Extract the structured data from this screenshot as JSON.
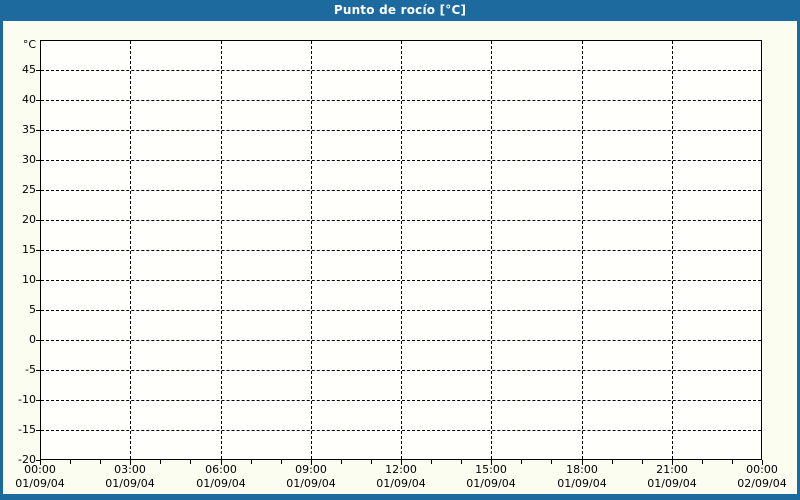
{
  "window": {
    "title": "Punto de rocío [°C]"
  },
  "colors": {
    "titlebar_bg": "#1d6a9e",
    "window_border": "#1d6a9e",
    "window_bg": "#fcfdf1",
    "plot_bg": "#fffffb",
    "grid": "#000000",
    "label_text": "#000000",
    "title_text": "#ffffff"
  },
  "chart_data": {
    "type": "line",
    "title": "Punto de rocío [°C]",
    "series": [],
    "note": "empty plot - no data recorded",
    "grid": "dashed",
    "legend": "none",
    "y_axis": {
      "unit_label": "°C",
      "min": -20,
      "max": 50,
      "tick_step": 5,
      "tick_labels": [
        "45",
        "40",
        "35",
        "30",
        "25",
        "20",
        "15",
        "10",
        "5",
        "0",
        "-5",
        "-10",
        "-15",
        "-20"
      ]
    },
    "x_axis": {
      "range_hours": 24,
      "major_tick_interval_hours": 3,
      "minor_tick_interval_hours": 1,
      "ticks": [
        {
          "time": "00:00",
          "date": "01/09/04"
        },
        {
          "time": "03:00",
          "date": "01/09/04"
        },
        {
          "time": "06:00",
          "date": "01/09/04"
        },
        {
          "time": "09:00",
          "date": "01/09/04"
        },
        {
          "time": "12:00",
          "date": "01/09/04"
        },
        {
          "time": "15:00",
          "date": "01/09/04"
        },
        {
          "time": "18:00",
          "date": "01/09/04"
        },
        {
          "time": "21:00",
          "date": "01/09/04"
        },
        {
          "time": "00:00",
          "date": "02/09/04"
        }
      ]
    }
  }
}
